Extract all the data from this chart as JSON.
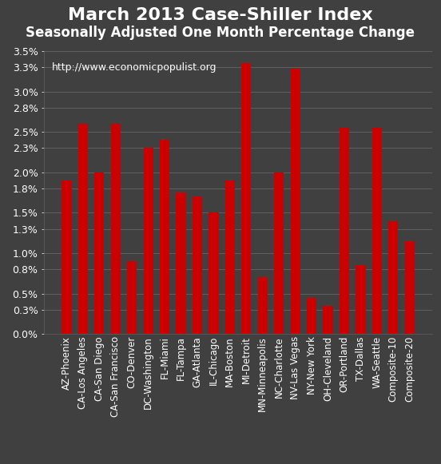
{
  "title": "March 2013 Case-Shiller Index",
  "subtitle": "Seasonally Adjusted One Month Percentage Change",
  "watermark": "http://www.economicpopulist.org",
  "categories": [
    "AZ-Phoenix",
    "CA-Los Angeles",
    "CA-San Diego",
    "CA-San Francisco",
    "CO-Denver",
    "DC-Washington",
    "FL-Miami",
    "FL-Tampa",
    "GA-Atlanta",
    "IL-Chicago",
    "MA-Boston",
    "MI-Detroit",
    "MN-Minneapolis",
    "NC-Charlotte",
    "NV-Las Vegas",
    "NY-New York",
    "OH-Cleveland",
    "OR-Portland",
    "TX-Dallas",
    "WA-Seattle",
    "Composite-10",
    "Composite-20"
  ],
  "values": [
    1.9,
    2.6,
    2.0,
    2.6,
    0.9,
    2.3,
    2.4,
    1.75,
    1.7,
    1.5,
    1.9,
    3.35,
    0.7,
    2.0,
    3.28,
    0.45,
    0.35,
    2.55,
    0.85,
    2.55,
    1.4,
    1.15
  ],
  "bar_color": "#cc0000",
  "background_color": "#404040",
  "grid_color": "#606060",
  "text_color": "#ffffff",
  "title_color": "#ffffff",
  "ylim": [
    0.0,
    3.5
  ],
  "ytick_labels": [
    "0.0%",
    "0.3%",
    "0.5%",
    "0.8%",
    "1.0%",
    "1.3%",
    "1.5%",
    "1.8%",
    "2.0%",
    "2.3%",
    "2.5%",
    "2.8%",
    "3.0%",
    "3.3%",
    "3.5%"
  ],
  "ytick_values": [
    0.0,
    0.3,
    0.5,
    0.8,
    1.0,
    1.3,
    1.5,
    1.8,
    2.0,
    2.3,
    2.5,
    2.8,
    3.0,
    3.3,
    3.5
  ],
  "title_fontsize": 16,
  "subtitle_fontsize": 12,
  "label_fontsize": 8.5,
  "tick_fontsize": 9
}
